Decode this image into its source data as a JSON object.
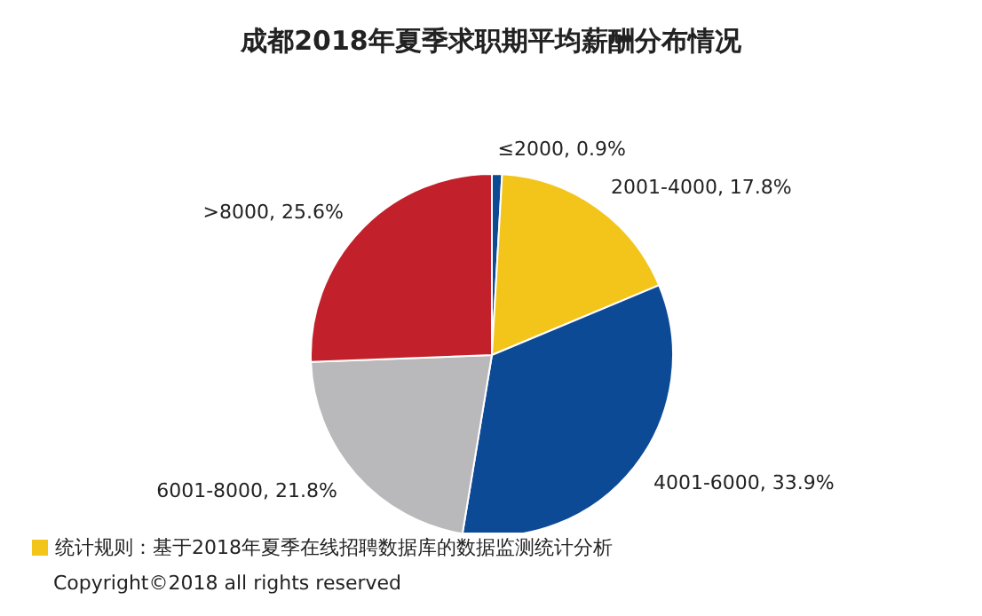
{
  "chart_data": {
    "type": "pie",
    "title": "成都2018年夏季求职期平均薪酬分布情况",
    "categories": [
      "≤2000",
      "2001-4000",
      "4001-6000",
      "6001-8000",
      ">8000"
    ],
    "values": [
      0.9,
      17.8,
      33.9,
      21.8,
      25.6
    ],
    "value_labels": [
      "0.9%",
      "17.8%",
      "33.9%",
      "21.8%",
      "25.6%"
    ],
    "colors": [
      "#0d4a95",
      "#f3c51b",
      "#0d4a95",
      "#b9b9bb",
      "#c2212b"
    ],
    "legend": false,
    "annotations": [
      "统计规则：基于2018年夏季在线招聘数据库的数据监测统计分析",
      "Copyright©2018 all rights reserved"
    ]
  }
}
